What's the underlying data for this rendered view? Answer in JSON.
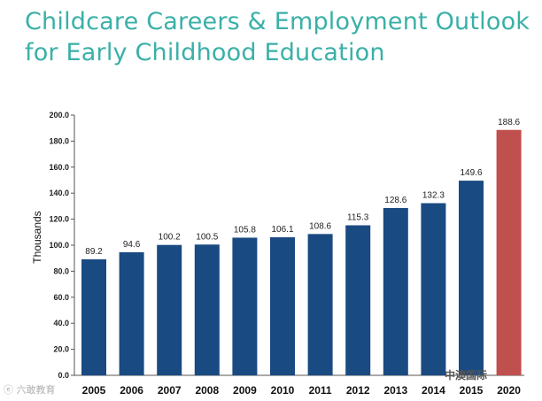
{
  "title_lines": [
    "Childcare Careers & Employment Outlook",
    "for Early Childhood Education"
  ],
  "watermarks": {
    "left": "ⓔ 六敢教育",
    "right": "中澳国际"
  },
  "colors": {
    "bar": "#1a4a82",
    "highlight": "#c0504d",
    "title": "#3ab0a8"
  },
  "chart_data": {
    "type": "bar",
    "title": "",
    "xlabel": "",
    "ylabel": "Thousands",
    "categories": [
      "2005",
      "2006",
      "2007",
      "2008",
      "2009",
      "2010",
      "2011",
      "2012",
      "2013",
      "2014",
      "2015",
      "2020"
    ],
    "values": [
      89.2,
      94.6,
      100.2,
      100.5,
      105.8,
      106.1,
      108.6,
      115.3,
      128.6,
      132.3,
      149.6,
      188.6
    ],
    "data_labels": [
      "89.2",
      "94.6",
      "100.2",
      "100.5",
      "105.8",
      "106.1",
      "108.6",
      "115.3",
      "128.6",
      "132.3",
      "149.6",
      "188.6"
    ],
    "yticks": [
      "0.0",
      "20.0",
      "40.0",
      "60.0",
      "80.0",
      "100.0",
      "120.0",
      "140.0",
      "160.0",
      "180.0",
      "200.0"
    ],
    "ylim": [
      0,
      200
    ],
    "highlight_category": "2020",
    "grid": false,
    "legend": "none"
  }
}
